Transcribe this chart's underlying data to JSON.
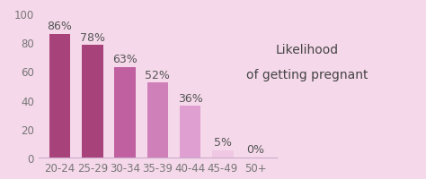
{
  "categories": [
    "20-24",
    "25-29",
    "30-34",
    "35-39",
    "40-44",
    "45-49",
    "50+"
  ],
  "values": [
    86,
    78,
    63,
    52,
    36,
    5,
    0
  ],
  "bar_colors": [
    "#a8427a",
    "#a8427a",
    "#c060a0",
    "#d080b8",
    "#df9fd0",
    "#f0c8e4",
    "#f5e0ee"
  ],
  "background_color": "#f5d8ea",
  "title_line1": "Likelihood",
  "title_line2": "of getting pregnant",
  "title_fontsize": 10,
  "label_fontsize": 9,
  "tick_fontsize": 8.5,
  "ylim": [
    0,
    100
  ],
  "yticks": [
    0,
    20,
    40,
    60,
    80,
    100
  ],
  "label_color": "#555555",
  "tick_color": "#777777"
}
